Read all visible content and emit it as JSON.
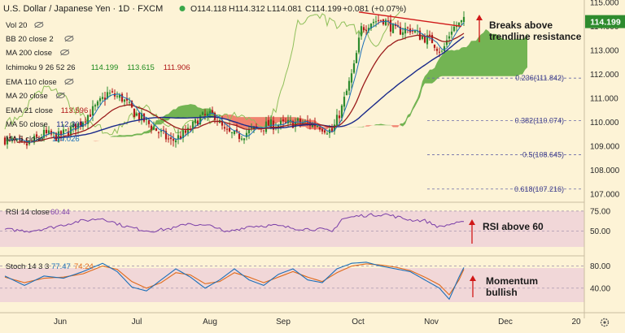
{
  "header": {
    "symbol_title": "U.S. Dollar / Japanese Yen · 1D · FXCM",
    "ohlc": {
      "open": "O114.118",
      "high": "H114.312",
      "low": "L114.081",
      "close": "C114.199",
      "change": "+0.081 (+0.07%)"
    }
  },
  "price_badge": "114.199",
  "indicators": [
    {
      "label": "Vol 20",
      "values": []
    },
    {
      "label": "BB 20 close 2",
      "values": []
    },
    {
      "label": "MA 200 close",
      "values": []
    },
    {
      "label": "Ichimoku 9 26 52 26",
      "values": [
        "114.199",
        "113.615",
        "111.906"
      ],
      "colors": [
        "#1c8a1c",
        "#1c8a1c",
        "#b01818"
      ]
    },
    {
      "label": "EMA 110 close",
      "values": []
    },
    {
      "label": "MA 20 close",
      "values": []
    },
    {
      "label": "EMA 21 close",
      "values": [
        "113.596"
      ],
      "colors": [
        "#b01818"
      ]
    },
    {
      "label": "MA 50 close",
      "values": [
        "112.301"
      ],
      "colors": [
        "#1a2a8a"
      ]
    },
    {
      "label": "MA 5 close",
      "values": [
        "114.026"
      ],
      "colors": [
        "#1b6fb8"
      ]
    }
  ],
  "annotations": {
    "main": "Breaks above\ntrendline resistance",
    "rsi": "RSI above 60",
    "stoch": "Momentum\nbullish"
  },
  "fib_levels": [
    {
      "label": "0.236(111.842)",
      "value": 111.842
    },
    {
      "label": "0.382(110.074)",
      "value": 110.074
    },
    {
      "label": "0.5(108.645)",
      "value": 108.645
    },
    {
      "label": "0.618(107.216)",
      "value": 107.216
    }
  ],
  "rsi": {
    "label": "RSI 14 close",
    "value": "60.44",
    "ticks": [
      "75.00",
      "50.00"
    ]
  },
  "stoch": {
    "label": "Stoch 14 3 3",
    "k": "77.47",
    "d": "74.24",
    "ticks": [
      "80.00",
      "40.00"
    ]
  },
  "colors": {
    "up": "#2e8b2e",
    "down": "#b31b1b",
    "cloud_bull": "#5aa83c",
    "cloud_bear": "#ee6e5e",
    "ema21": "#9b1c1c",
    "ma50": "#1a2a8a",
    "ma5": "#1b6fb8",
    "chikou": "#8fbf5a",
    "rsi_line": "#7b3fa8",
    "stoch_k": "#1b6fb8",
    "stoch_d": "#e06a1a",
    "annotation_arrow": "#d01818",
    "badge": "#2e8b2e"
  },
  "chart_data": {
    "type": "candlestick",
    "title": "U.S. Dollar / Japanese Yen · 1D · FXCM",
    "x_tick_labels": [
      "Jun",
      "Jul",
      "Aug",
      "Sep",
      "Oct",
      "Nov",
      "Dec",
      "20"
    ],
    "y_ticks": [
      107,
      108,
      109,
      110,
      111,
      112,
      113,
      114,
      115
    ],
    "y_range": [
      106.7,
      115.1
    ],
    "price_path": [
      [
        0,
        109.3
      ],
      [
        8,
        109.0
      ],
      [
        16,
        109.5
      ],
      [
        22,
        109.4
      ],
      [
        30,
        109.9
      ],
      [
        38,
        110.7
      ],
      [
        42,
        111.2
      ],
      [
        48,
        111.0
      ],
      [
        53,
        110.4
      ],
      [
        58,
        110.0
      ],
      [
        63,
        109.6
      ],
      [
        68,
        109.2
      ],
      [
        75,
        109.6
      ],
      [
        80,
        110.2
      ],
      [
        86,
        110.3
      ],
      [
        90,
        109.6
      ],
      [
        95,
        109.4
      ],
      [
        102,
        109.7
      ],
      [
        108,
        109.9
      ],
      [
        114,
        109.9
      ],
      [
        120,
        110.0
      ],
      [
        128,
        109.9
      ],
      [
        134,
        109.6
      ],
      [
        138,
        110.6
      ],
      [
        143,
        112.3
      ],
      [
        146,
        113.9
      ],
      [
        150,
        114.2
      ],
      [
        155,
        114.3
      ],
      [
        160,
        113.8
      ],
      [
        166,
        113.9
      ],
      [
        170,
        113.6
      ],
      [
        175,
        113.4
      ],
      [
        179,
        112.9
      ],
      [
        183,
        113.9
      ],
      [
        188,
        114.2
      ]
    ],
    "trendline": [
      [
        145,
        114.6
      ],
      [
        187,
        114.0
      ]
    ],
    "rsi_series": [
      [
        0,
        52
      ],
      [
        10,
        50
      ],
      [
        20,
        55
      ],
      [
        30,
        62
      ],
      [
        40,
        66
      ],
      [
        48,
        57
      ],
      [
        55,
        52
      ],
      [
        60,
        50
      ],
      [
        70,
        54
      ],
      [
        75,
        60
      ],
      [
        80,
        57
      ],
      [
        86,
        56
      ],
      [
        90,
        48
      ],
      [
        100,
        56
      ],
      [
        110,
        57
      ],
      [
        120,
        53
      ],
      [
        130,
        52
      ],
      [
        134,
        49
      ],
      [
        138,
        65
      ],
      [
        145,
        69
      ],
      [
        150,
        70
      ],
      [
        156,
        71
      ],
      [
        160,
        68
      ],
      [
        166,
        64
      ],
      [
        172,
        63
      ],
      [
        178,
        55
      ],
      [
        183,
        59
      ],
      [
        188,
        60.44
      ]
    ],
    "stoch_k_series": [
      [
        0,
        62
      ],
      [
        8,
        45
      ],
      [
        16,
        62
      ],
      [
        24,
        58
      ],
      [
        32,
        70
      ],
      [
        40,
        85
      ],
      [
        46,
        70
      ],
      [
        52,
        42
      ],
      [
        58,
        35
      ],
      [
        64,
        55
      ],
      [
        70,
        75
      ],
      [
        76,
        60
      ],
      [
        82,
        40
      ],
      [
        88,
        55
      ],
      [
        94,
        75
      ],
      [
        100,
        55
      ],
      [
        106,
        45
      ],
      [
        112,
        65
      ],
      [
        118,
        75
      ],
      [
        124,
        55
      ],
      [
        130,
        50
      ],
      [
        136,
        75
      ],
      [
        142,
        85
      ],
      [
        148,
        87
      ],
      [
        154,
        80
      ],
      [
        160,
        75
      ],
      [
        166,
        70
      ],
      [
        172,
        55
      ],
      [
        178,
        40
      ],
      [
        182,
        20
      ],
      [
        186,
        60
      ],
      [
        188,
        77.47
      ]
    ],
    "stoch_d_series": [
      [
        0,
        60
      ],
      [
        8,
        50
      ],
      [
        16,
        58
      ],
      [
        24,
        60
      ],
      [
        32,
        66
      ],
      [
        40,
        80
      ],
      [
        46,
        74
      ],
      [
        52,
        52
      ],
      [
        58,
        40
      ],
      [
        64,
        50
      ],
      [
        70,
        68
      ],
      [
        76,
        64
      ],
      [
        82,
        48
      ],
      [
        88,
        52
      ],
      [
        94,
        68
      ],
      [
        100,
        60
      ],
      [
        106,
        50
      ],
      [
        112,
        60
      ],
      [
        118,
        70
      ],
      [
        124,
        60
      ],
      [
        130,
        52
      ],
      [
        136,
        68
      ],
      [
        142,
        80
      ],
      [
        148,
        84
      ],
      [
        154,
        82
      ],
      [
        160,
        78
      ],
      [
        166,
        72
      ],
      [
        172,
        60
      ],
      [
        178,
        46
      ],
      [
        182,
        28
      ],
      [
        186,
        55
      ],
      [
        188,
        74.24
      ]
    ]
  }
}
